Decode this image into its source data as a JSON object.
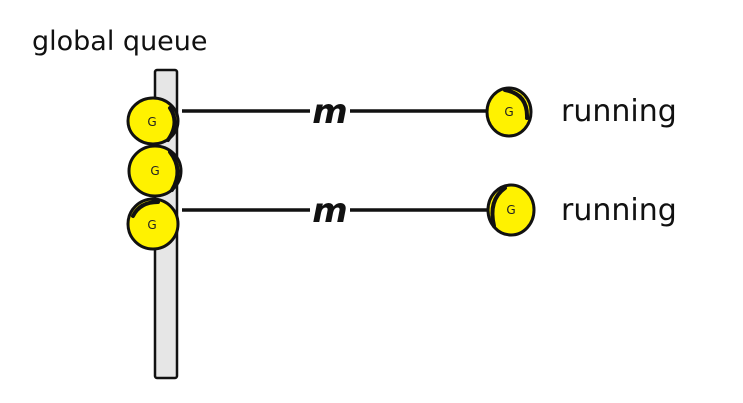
{
  "title": "global queue",
  "goroutine_label": "G",
  "machine_label": "m",
  "status_label": "running",
  "colors": {
    "goroutine_fill": "#fff200",
    "outline": "#111111",
    "queue_bar_fill": "#e6e6e6"
  },
  "queue": {
    "goroutines": [
      "G",
      "G",
      "G"
    ]
  },
  "threads": [
    {
      "machine": "m",
      "goroutine": "G",
      "status": "running"
    },
    {
      "machine": "m",
      "goroutine": "G",
      "status": "running"
    }
  ]
}
